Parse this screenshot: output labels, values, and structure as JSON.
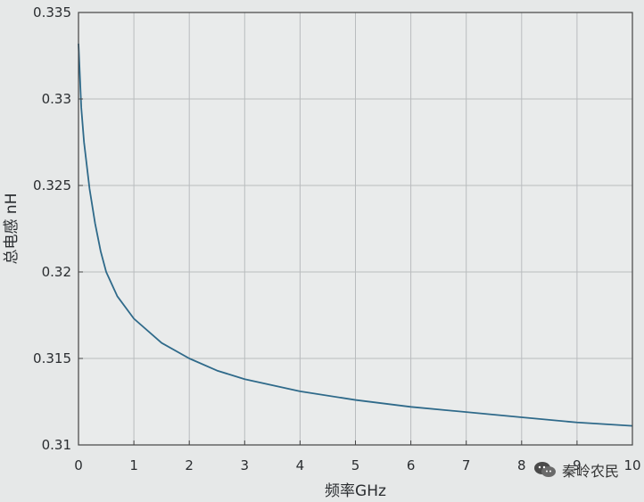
{
  "chart_data": {
    "type": "line",
    "xlabel": "频率GHz",
    "ylabel": "总电感 nH",
    "xlim": [
      0,
      10
    ],
    "ylim": [
      0.31,
      0.335
    ],
    "xticks": [
      0,
      1,
      2,
      3,
      4,
      5,
      6,
      7,
      8,
      9,
      10
    ],
    "xtick_labels": [
      "0",
      "1",
      "2",
      "3",
      "4",
      "5",
      "6",
      "7",
      "8",
      "9",
      "10"
    ],
    "yticks": [
      0.31,
      0.315,
      0.32,
      0.325,
      0.33,
      0.335
    ],
    "ytick_labels": [
      "0.31",
      "0.315",
      "0.32",
      "0.325",
      "0.33",
      "0.335"
    ],
    "grid": true,
    "line_color": "#2f6a8a",
    "series": [
      {
        "x": [
          0.0,
          0.05,
          0.1,
          0.2,
          0.3,
          0.4,
          0.5,
          0.7,
          1.0,
          1.5,
          2.0,
          2.5,
          3.0,
          4.0,
          5.0,
          6.0,
          7.0,
          8.0,
          9.0,
          10.0
        ],
        "values": [
          0.3332,
          0.3295,
          0.3275,
          0.3248,
          0.3228,
          0.3212,
          0.32,
          0.3186,
          0.3173,
          0.3159,
          0.315,
          0.3143,
          0.3138,
          0.3131,
          0.3126,
          0.3122,
          0.3119,
          0.3116,
          0.3113,
          0.3111
        ]
      }
    ]
  },
  "watermark": {
    "text": "秦岭农民",
    "icon": "wechat-icon"
  }
}
